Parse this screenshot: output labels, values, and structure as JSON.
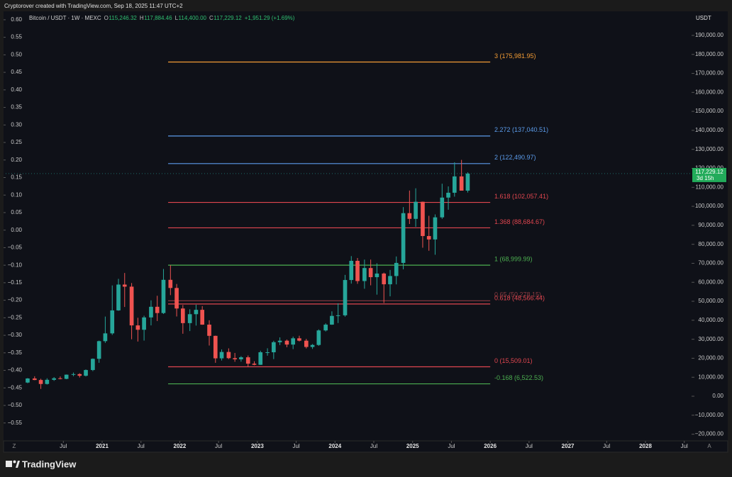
{
  "header": "Cryptorover created with TradingView.com, Sep 18, 2025 11:47 UTC+2",
  "legend": {
    "symbol": "Bitcoin / USDT · 1W · MEXC",
    "o_key": "O",
    "o": "115,246.32",
    "h_key": "H",
    "h": "117,884.46",
    "l_key": "L",
    "l": "114,400.00",
    "c_key": "C",
    "c": "117,229.12",
    "change": "+1,951.29 (+1.69%)"
  },
  "currency": "USDT",
  "last_price": {
    "value": 117229.12,
    "label": "117,229.12",
    "countdown": "3d 15h"
  },
  "scale_left_button": "Z",
  "scale_auto_button": "A",
  "brand": "TradingView",
  "chart_data": {
    "type": "candlestick",
    "xlim": [
      2019.757,
      2028.594
    ],
    "xticks": [
      {
        "value": 2020.5,
        "label": "Jul"
      },
      2021,
      {
        "value": 2021.5,
        "label": "Jul"
      },
      2022,
      {
        "value": 2022.5,
        "label": "Jul"
      },
      2023,
      {
        "value": 2023.5,
        "label": "Jul"
      },
      2024,
      {
        "value": 2024.5,
        "label": "Jul"
      },
      2025,
      {
        "value": 2025.5,
        "label": "Jul"
      },
      2026,
      {
        "value": 2026.5,
        "label": "Jul"
      },
      2027,
      {
        "value": 2027.5,
        "label": "Jul"
      },
      2028,
      {
        "value": 2028.5,
        "label": "Jul"
      }
    ],
    "ylim": [
      -23500,
      202300
    ],
    "yticks": [
      {
        "value": 190000,
        "label": "190,000.00"
      },
      {
        "value": 180000,
        "label": "180,000.00"
      },
      {
        "value": 170000,
        "label": "170,000.00"
      },
      {
        "value": 160000,
        "label": "160,000.00"
      },
      {
        "value": 150000,
        "label": "150,000.00"
      },
      {
        "value": 140000,
        "label": "140,000.00"
      },
      {
        "value": 130000,
        "label": "130,000.00"
      },
      {
        "value": 120000,
        "label": "120,000.00"
      },
      {
        "value": 110000,
        "label": "110,000.00"
      },
      {
        "value": 100000,
        "label": "100,000.00"
      },
      {
        "value": 90000,
        "label": "90,000.00"
      },
      {
        "value": 80000,
        "label": "80,000.00"
      },
      {
        "value": 70000,
        "label": "70,000.00"
      },
      {
        "value": 60000,
        "label": "60,000.00"
      },
      {
        "value": 50000,
        "label": "50,000.00"
      },
      {
        "value": 40000,
        "label": "40,000.00"
      },
      {
        "value": 30000,
        "label": "30,000.00"
      },
      {
        "value": 20000,
        "label": "20,000.00"
      },
      {
        "value": 10000,
        "label": "10,000.00"
      },
      {
        "value": 0,
        "label": "0.00"
      },
      {
        "value": -10000,
        "label": "−10,000.00"
      },
      {
        "value": -20000,
        "label": "−20,000.00"
      }
    ],
    "y2lim": [
      -0.601,
      0.622
    ],
    "y2ticks": [
      {
        "value": 0.6,
        "label": "0.60"
      },
      {
        "value": 0.55,
        "label": "0.55"
      },
      {
        "value": 0.5,
        "label": "0.50"
      },
      {
        "value": 0.45,
        "label": "0.45"
      },
      {
        "value": 0.4,
        "label": "0.40"
      },
      {
        "value": 0.35,
        "label": "0.35"
      },
      {
        "value": 0.3,
        "label": "0.30"
      },
      {
        "value": 0.25,
        "label": "0.25"
      },
      {
        "value": 0.2,
        "label": "0.20"
      },
      {
        "value": 0.15,
        "label": "0.15"
      },
      {
        "value": 0.1,
        "label": "0.10"
      },
      {
        "value": 0.05,
        "label": "0.05"
      },
      {
        "value": 0,
        "label": "0.00"
      },
      {
        "value": -0.05,
        "label": "−0.05"
      },
      {
        "value": -0.1,
        "label": "−0.10"
      },
      {
        "value": -0.15,
        "label": "−0.15"
      },
      {
        "value": -0.2,
        "label": "−0.20"
      },
      {
        "value": -0.25,
        "label": "−0.25"
      },
      {
        "value": -0.3,
        "label": "−0.30"
      },
      {
        "value": -0.35,
        "label": "−0.35"
      },
      {
        "value": -0.4,
        "label": "−0.40"
      },
      {
        "value": -0.45,
        "label": "−0.45"
      },
      {
        "value": -0.5,
        "label": "−0.50"
      },
      {
        "value": -0.55,
        "label": "−0.55"
      }
    ],
    "up_color": "#26a69a",
    "down_color": "#ef5350",
    "x": [
      2020.04,
      2020.13,
      2020.21,
      2020.29,
      2020.38,
      2020.46,
      2020.54,
      2020.63,
      2020.71,
      2020.79,
      2020.88,
      2020.96,
      2021.04,
      2021.13,
      2021.21,
      2021.29,
      2021.38,
      2021.46,
      2021.54,
      2021.63,
      2021.71,
      2021.79,
      2021.88,
      2021.96,
      2022.04,
      2022.13,
      2022.21,
      2022.29,
      2022.38,
      2022.46,
      2022.54,
      2022.63,
      2022.71,
      2022.79,
      2022.88,
      2022.96,
      2023.04,
      2023.13,
      2023.21,
      2023.29,
      2023.38,
      2023.46,
      2023.54,
      2023.63,
      2023.71,
      2023.79,
      2023.88,
      2023.96,
      2024.04,
      2024.13,
      2024.21,
      2024.29,
      2024.38,
      2024.46,
      2024.54,
      2024.63,
      2024.71,
      2024.79,
      2024.88,
      2024.96,
      2025.04,
      2025.13,
      2025.21,
      2025.29,
      2025.38,
      2025.46,
      2025.54,
      2025.63,
      2025.71
    ],
    "open": [
      7200,
      9350,
      8550,
      6450,
      8650,
      9450,
      9140,
      11350,
      11650,
      10780,
      13800,
      19700,
      29000,
      33100,
      45200,
      58800,
      57700,
      37300,
      35000,
      41500,
      47100,
      43800,
      61300,
      57000,
      46200,
      38500,
      43200,
      45500,
      37700,
      31800,
      19950,
      23300,
      20050,
      19450,
      20500,
      17150,
      16550,
      23150,
      23150,
      28450,
      29250,
      27200,
      30500,
      29250,
      25950,
      27000,
      34650,
      37700,
      42300,
      42600,
      61200,
      71300,
      60650,
      67500,
      62700,
      64600,
      58950,
      63300,
      70200,
      96400,
      93400,
      102400,
      84350,
      82550,
      94200,
      104600,
      107150,
      115750,
      108250
    ],
    "high": [
      9550,
      10500,
      9200,
      9450,
      10080,
      10400,
      11450,
      12480,
      12100,
      14100,
      19900,
      29300,
      41950,
      58350,
      61800,
      64900,
      59600,
      41300,
      42400,
      50500,
      52900,
      67000,
      69000,
      59100,
      48000,
      45800,
      48200,
      47450,
      40000,
      31900,
      24650,
      25200,
      22800,
      21100,
      21450,
      18400,
      23950,
      25250,
      29200,
      31000,
      29850,
      31400,
      31850,
      30200,
      27500,
      35200,
      38400,
      44700,
      48950,
      63900,
      73800,
      72800,
      71950,
      71950,
      70000,
      65100,
      66500,
      73600,
      99600,
      108300,
      109500,
      102500,
      95000,
      95750,
      111900,
      110500,
      123200,
      124450,
      117900
    ],
    "low": [
      6850,
      8450,
      3850,
      6150,
      8100,
      8900,
      8950,
      10550,
      9850,
      10400,
      13200,
      17600,
      28100,
      32300,
      45000,
      47000,
      30000,
      28800,
      29300,
      37300,
      39600,
      43300,
      53250,
      42000,
      32900,
      34300,
      37200,
      37600,
      26700,
      17600,
      18800,
      19550,
      18150,
      18200,
      15500,
      16300,
      16500,
      21350,
      19550,
      26950,
      25800,
      24800,
      28850,
      25150,
      24900,
      26550,
      34100,
      37600,
      38550,
      41900,
      59300,
      59200,
      56600,
      58400,
      53500,
      49100,
      52600,
      58900,
      66800,
      90700,
      89200,
      78200,
      76600,
      74500,
      93400,
      98200,
      105100,
      108700,
      107250
    ],
    "close": [
      9350,
      8550,
      6450,
      8650,
      9450,
      9140,
      11350,
      11650,
      10780,
      13800,
      19700,
      29000,
      33100,
      45200,
      58800,
      57700,
      37300,
      35000,
      41500,
      47100,
      43800,
      61300,
      57000,
      46200,
      38500,
      43200,
      45500,
      37700,
      31800,
      19950,
      23300,
      20050,
      19450,
      20500,
      17150,
      16550,
      23150,
      23150,
      28450,
      29250,
      27200,
      30500,
      29250,
      25950,
      27000,
      34650,
      37700,
      42300,
      42600,
      61200,
      71300,
      60650,
      67500,
      62700,
      64600,
      58950,
      63300,
      70200,
      96400,
      93400,
      102400,
      84350,
      82550,
      94200,
      104600,
      107150,
      115750,
      108250,
      117229.12
    ],
    "fib_levels": [
      {
        "label": "3 (175,981.95)",
        "price": 175981.95,
        "color": "#f39c34"
      },
      {
        "label": "2.272 (137,040.51)",
        "price": 137040.51,
        "color": "#5b9bea"
      },
      {
        "label": "2 (122,490.97)",
        "price": 122490.97,
        "color": "#5b9bea"
      },
      {
        "label": "1.618 (102,057.41)",
        "price": 102057.41,
        "color": "#e0464f"
      },
      {
        "label": "1.368 (88,684.67)",
        "price": 88684.67,
        "color": "#e0464f"
      },
      {
        "label": "1 (68,999.99)",
        "price": 68999.99,
        "color": "#4caf50"
      },
      {
        "label": "0.65 (50,278.15)",
        "price": 50278.15,
        "color": "#8a3a40"
      },
      {
        "label": "0.618 (48,566.44)",
        "price": 48566.44,
        "color": "#e0464f"
      },
      {
        "label": "0 (15,509.01)",
        "price": 15509.01,
        "color": "#e0464f"
      },
      {
        "label": "-0.168 (6,522.53)",
        "price": 6522.53,
        "color": "#4caf50"
      }
    ]
  }
}
